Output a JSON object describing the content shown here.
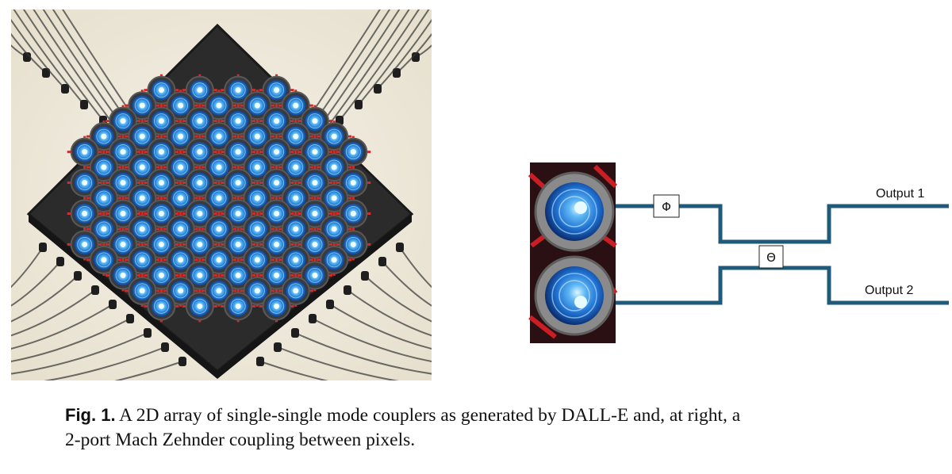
{
  "figure": {
    "label": "Fig. 1.",
    "caption_line1": "A 2D array of single-single mode couplers as generated by DALL-E and, at right, a",
    "caption_line2": "2-port Mach Zehnder coupling between pixels."
  },
  "mzi": {
    "phase_shifter_1": "Φ",
    "phase_shifter_2": "Θ",
    "output_1": "Output 1",
    "output_2": "Output 2"
  },
  "colors": {
    "waveguide": "#1f5a7a",
    "coupler_blue": "#2f8fe0",
    "board": "#2b2b2b",
    "wire_red": "#d42a2a",
    "background_cream": "#f1ede2"
  }
}
